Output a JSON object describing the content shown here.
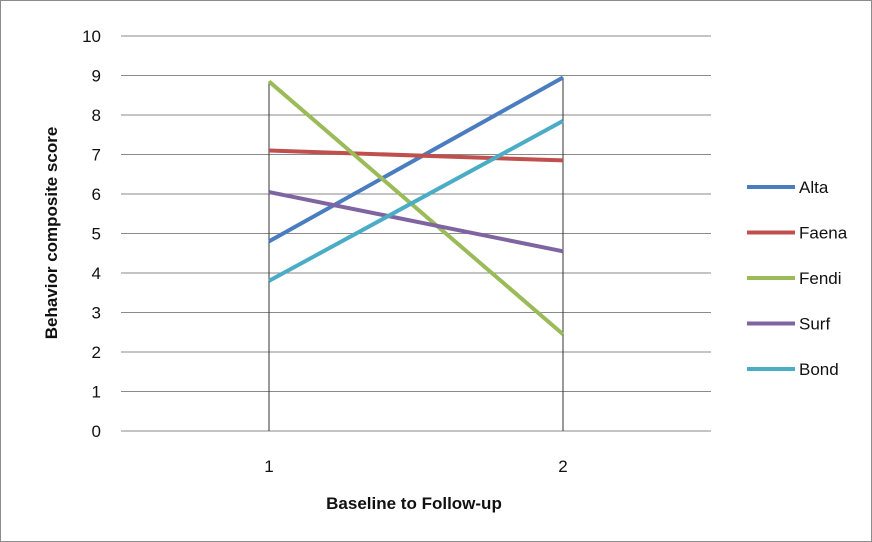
{
  "chart_data": {
    "type": "line",
    "xlabel": "Baseline to Follow-up",
    "ylabel": "Behavior composite score",
    "categories": [
      "1",
      "2"
    ],
    "ylim": [
      0,
      10
    ],
    "yticks": [
      "0",
      "1",
      "2",
      "3",
      "4",
      "5",
      "6",
      "7",
      "8",
      "9",
      "10"
    ],
    "grid": true,
    "legend_position": "right",
    "series": [
      {
        "name": "Alta",
        "values": [
          4.8,
          8.95
        ],
        "color": "#4a7cc0"
      },
      {
        "name": "Faena",
        "values": [
          7.1,
          6.85
        ],
        "color": "#c0504d"
      },
      {
        "name": "Fendi",
        "values": [
          8.85,
          2.45
        ],
        "color": "#9bbb59"
      },
      {
        "name": "Surf",
        "values": [
          6.05,
          4.55
        ],
        "color": "#8064a2"
      },
      {
        "name": "Bond",
        "values": [
          3.8,
          7.85
        ],
        "color": "#4bacc6"
      }
    ]
  }
}
